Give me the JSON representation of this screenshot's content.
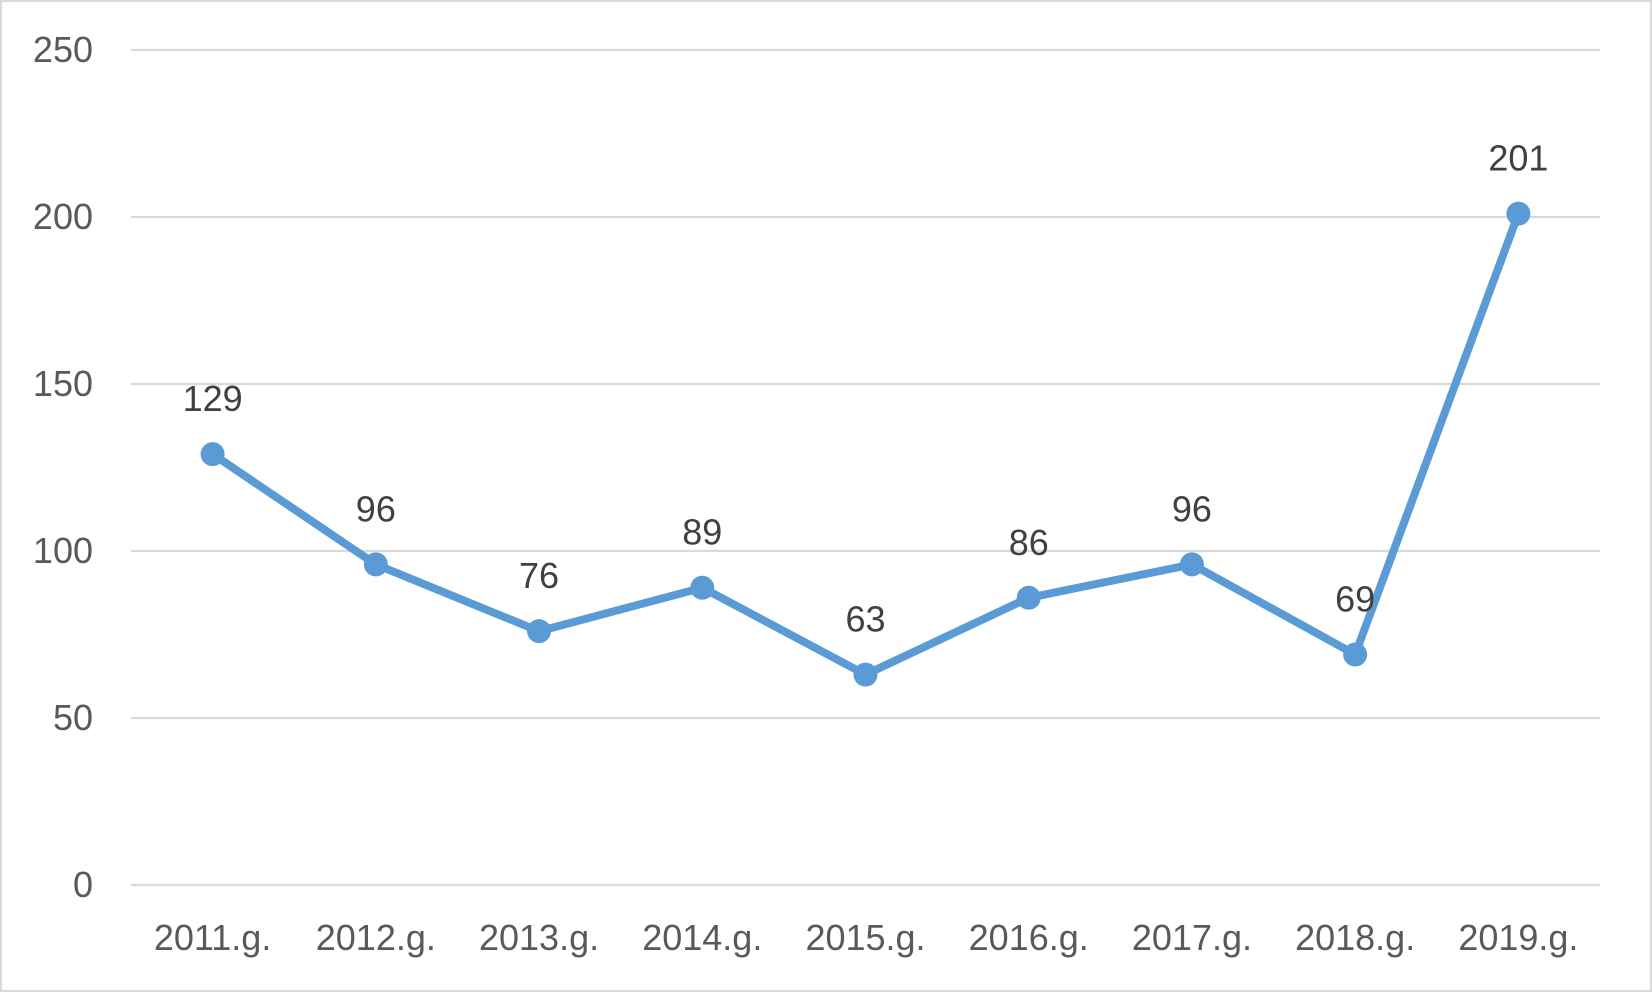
{
  "chart_data": {
    "type": "line",
    "title": "",
    "xlabel": "",
    "ylabel": "",
    "categories": [
      "2011.g.",
      "2012.g.",
      "2013.g.",
      "2014.g.",
      "2015.g.",
      "2016.g.",
      "2017.g.",
      "2018.g.",
      "2019.g."
    ],
    "series": [
      {
        "values": [
          129,
          96,
          76,
          89,
          63,
          86,
          96,
          69,
          201
        ],
        "color": "#5b9bd5"
      }
    ],
    "data_labels": [
      "129",
      "96",
      "76",
      "89",
      "63",
      "86",
      "96",
      "69",
      "201"
    ],
    "ylim": [
      0,
      250
    ],
    "yticks": [
      0,
      50,
      100,
      150,
      200,
      250
    ],
    "ytick_labels": [
      "0",
      "50",
      "100",
      "150",
      "200",
      "250"
    ],
    "grid": true,
    "gridline_color": "#d9d9d9",
    "legend": "none"
  }
}
